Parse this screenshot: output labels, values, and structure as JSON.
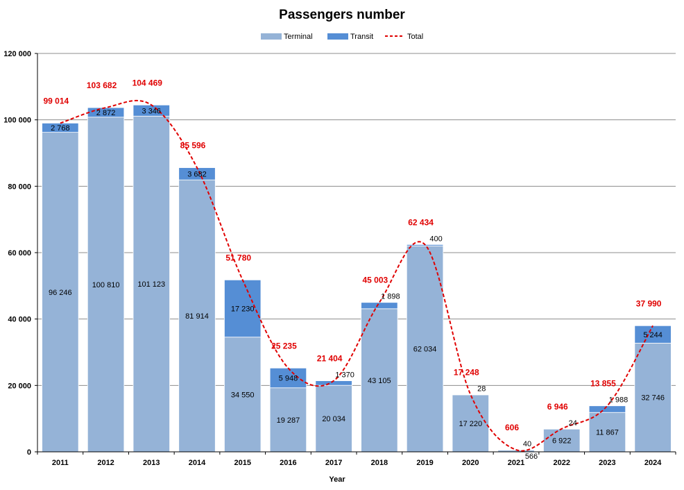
{
  "chart_data": {
    "type": "bar",
    "stacked": true,
    "title": "Passengers number",
    "xlabel": "Year",
    "ylabel": "",
    "ylim": [
      0,
      120000
    ],
    "yticks": [
      0,
      20000,
      40000,
      60000,
      80000,
      100000,
      120000
    ],
    "ytick_labels": [
      "0",
      "20 000",
      "40 000",
      "60 000",
      "80 000",
      "100 000",
      "120 000"
    ],
    "grid": true,
    "legend_position": "top-center",
    "categories": [
      "2011",
      "2012",
      "2013",
      "2014",
      "2015",
      "2016",
      "2017",
      "2018",
      "2019",
      "2020",
      "2021",
      "2022",
      "2023",
      "2024"
    ],
    "series": [
      {
        "name": "Terminal",
        "color": "#95b3d7",
        "values": [
          96246,
          100810,
          101123,
          81914,
          34550,
          19287,
          20034,
          43105,
          62034,
          17220,
          566,
          6922,
          11867,
          32746
        ],
        "labels": [
          "96 246",
          "100 810",
          "101 123",
          "81 914",
          "34 550",
          "19 287",
          "20 034",
          "43 105",
          "62 034",
          "17 220",
          "566",
          "6 922",
          "11 867",
          "32 746"
        ]
      },
      {
        "name": "Transit",
        "color": "#558ed5",
        "values": [
          2768,
          2872,
          3346,
          3682,
          17230,
          5948,
          1370,
          1898,
          400,
          28,
          40,
          24,
          1988,
          5244
        ],
        "labels": [
          "2 768",
          "2 872",
          "3 346",
          "3 682",
          "17 230",
          "5 948",
          "1 370",
          "1 898",
          "400",
          "28",
          "40",
          "24",
          "1 988",
          "5 244"
        ]
      },
      {
        "name": "Total",
        "color": "#e00000",
        "line_style": "dashed",
        "values": [
          99014,
          103682,
          104469,
          85596,
          51780,
          25235,
          21404,
          45003,
          62434,
          17248,
          606,
          6946,
          13855,
          37990
        ],
        "labels": [
          "99 014",
          "103 682",
          "104 469",
          "85 596",
          "51 780",
          "25 235",
          "21 404",
          "45 003",
          "62 434",
          "17 248",
          "606",
          "6 946",
          "13 855",
          "37 990"
        ]
      }
    ]
  }
}
